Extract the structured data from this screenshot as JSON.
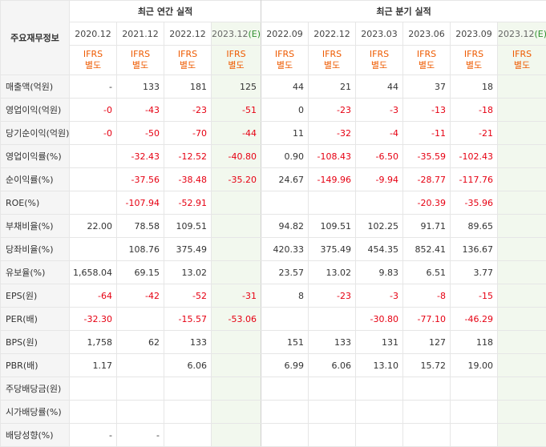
{
  "table_header": {
    "label": "주요재무정보",
    "annual_group": "최근 연간 실적",
    "quarter_group": "최근 분기 실적",
    "annual_periods": [
      "2020.12",
      "2021.12",
      "2022.12",
      "2023.12"
    ],
    "quarter_periods": [
      "2022.09",
      "2022.12",
      "2023.03",
      "2023.06",
      "2023.09",
      "2023.12"
    ],
    "estimate_mark": "(E)",
    "std_line1": "IFRS",
    "std_line2": "별도"
  },
  "colors": {
    "negative": "#e60012",
    "standard": "#ee5a00",
    "estimate_bg": "#f2f8ee",
    "estimate_mark": "#2f8f2f"
  },
  "rows": [
    {
      "label": "매출액(억원)",
      "values": [
        "-",
        "133",
        "181",
        "125",
        "44",
        "21",
        "44",
        "37",
        "18",
        ""
      ]
    },
    {
      "label": "영업이익(억원)",
      "values": [
        "-0",
        "-43",
        "-23",
        "-51",
        "0",
        "-23",
        "-3",
        "-13",
        "-18",
        ""
      ]
    },
    {
      "label": "당기순이익(억원)",
      "values": [
        "-0",
        "-50",
        "-70",
        "-44",
        "11",
        "-32",
        "-4",
        "-11",
        "-21",
        ""
      ]
    },
    {
      "label": "영업이익률(%)",
      "values": [
        "",
        "-32.43",
        "-12.52",
        "-40.80",
        "0.90",
        "-108.43",
        "-6.50",
        "-35.59",
        "-102.43",
        ""
      ]
    },
    {
      "label": "순이익률(%)",
      "values": [
        "",
        "-37.56",
        "-38.48",
        "-35.20",
        "24.67",
        "-149.96",
        "-9.94",
        "-28.77",
        "-117.76",
        ""
      ]
    },
    {
      "label": "ROE(%)",
      "values": [
        "",
        "-107.94",
        "-52.91",
        "",
        "",
        "",
        "",
        "-20.39",
        "-35.96",
        ""
      ]
    },
    {
      "label": "부채비율(%)",
      "values": [
        "22.00",
        "78.58",
        "109.51",
        "",
        "94.82",
        "109.51",
        "102.25",
        "91.71",
        "89.65",
        ""
      ]
    },
    {
      "label": "당좌비율(%)",
      "values": [
        "",
        "108.76",
        "375.49",
        "",
        "420.33",
        "375.49",
        "454.35",
        "852.41",
        "136.67",
        ""
      ]
    },
    {
      "label": "유보율(%)",
      "values": [
        "1,658.04",
        "69.15",
        "13.02",
        "",
        "23.57",
        "13.02",
        "9.83",
        "6.51",
        "3.77",
        ""
      ]
    },
    {
      "label": "EPS(원)",
      "values": [
        "-64",
        "-42",
        "-52",
        "-31",
        "8",
        "-23",
        "-3",
        "-8",
        "-15",
        ""
      ]
    },
    {
      "label": "PER(배)",
      "values": [
        "-32.30",
        "",
        "-15.57",
        "-53.06",
        "",
        "",
        "-30.80",
        "-77.10",
        "-46.29",
        ""
      ]
    },
    {
      "label": "BPS(원)",
      "values": [
        "1,758",
        "62",
        "133",
        "",
        "151",
        "133",
        "131",
        "127",
        "118",
        ""
      ]
    },
    {
      "label": "PBR(배)",
      "values": [
        "1.17",
        "",
        "6.06",
        "",
        "6.99",
        "6.06",
        "13.10",
        "15.72",
        "19.00",
        ""
      ]
    },
    {
      "label": "주당배당금(원)",
      "values": [
        "",
        "",
        "",
        "",
        "",
        "",
        "",
        "",
        "",
        ""
      ]
    },
    {
      "label": "시가배당률(%)",
      "values": [
        "",
        "",
        "",
        "",
        "",
        "",
        "",
        "",
        "",
        ""
      ]
    },
    {
      "label": "배당성향(%)",
      "values": [
        "-",
        "-",
        "",
        "",
        "",
        "",
        "",
        "",
        "",
        ""
      ]
    }
  ]
}
